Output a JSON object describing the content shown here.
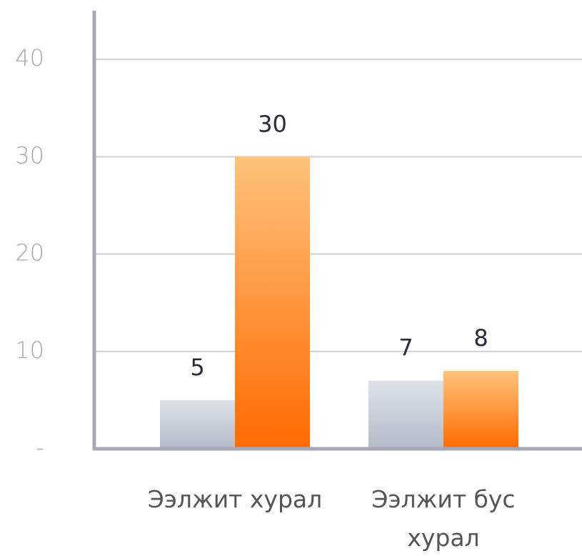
{
  "chart_data": {
    "type": "bar",
    "categories": [
      "Ээлжит хурал",
      "Ээлжит бус хурал"
    ],
    "series": [
      {
        "color": "#c2c9d4",
        "gradient": [
          "#dde2ea",
          "#b3bbc7"
        ],
        "values": [
          5,
          7
        ]
      },
      {
        "color": "#ff9a40",
        "gradient": [
          "#ffc27c",
          "#ff6a00"
        ],
        "values": [
          30,
          8
        ]
      }
    ],
    "ylim": [
      0,
      45
    ],
    "yticks": [
      {
        "value": 0,
        "label": "-"
      },
      10,
      20,
      30,
      40
    ],
    "grid": true
  }
}
